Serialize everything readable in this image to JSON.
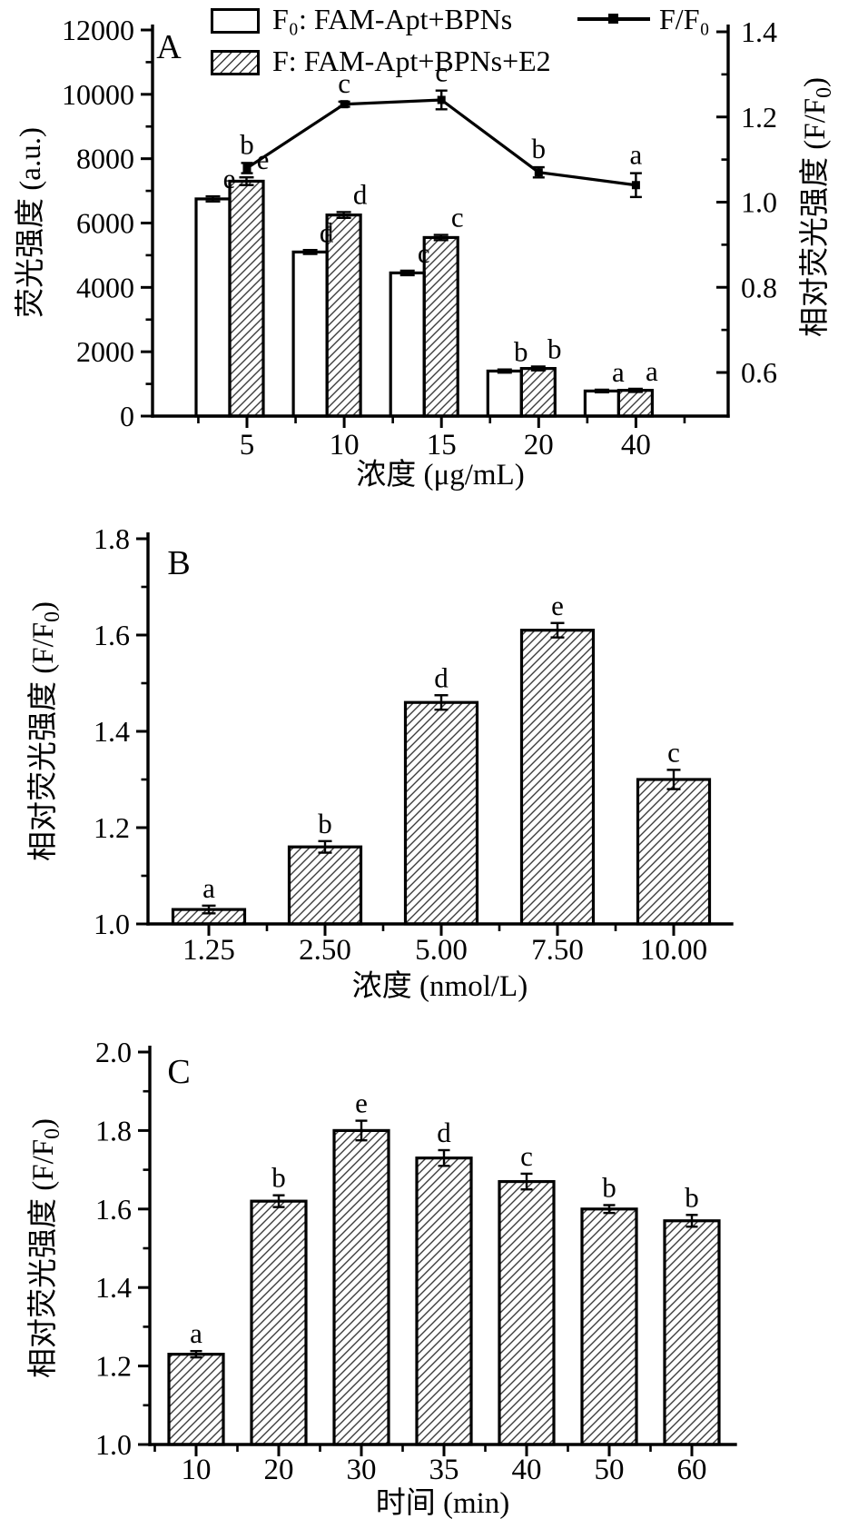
{
  "figure": {
    "background": "#ffffff",
    "ink_color": "#000000",
    "hatch_color": "#3d3d3d"
  },
  "legend": {
    "items": [
      {
        "swatch": "open",
        "label": "F₀: FAM-Apt+BPNs"
      },
      {
        "swatch": "hatch",
        "label": "F: FAM-Apt+BPNs+E2"
      },
      {
        "swatch": "line-marker",
        "label": "F/F₀"
      }
    ]
  },
  "chart_data": [
    {
      "type": "bar",
      "panel_label": "A",
      "categories": [
        "5",
        "10",
        "15",
        "20",
        "40"
      ],
      "xlabel": "浓度 (μg/mL)",
      "ylabel_left": "荧光强度 (a.u.)",
      "ylabel_right": "相对荧光强度 (F/F₀)",
      "ylim_left": [
        0,
        12000
      ],
      "yticks_left": [
        0,
        2000,
        4000,
        6000,
        8000,
        10000,
        12000
      ],
      "ytick_decimals_left": 0,
      "ylim_right": [
        0.6,
        1.4
      ],
      "yticks_right": [
        0.6,
        0.8,
        1.0,
        1.2,
        1.4
      ],
      "grid": false,
      "legend_position": "top",
      "series": [
        {
          "name": "F₀: FAM-Apt+BPNs",
          "fill": "open",
          "values": [
            6750,
            5100,
            4450,
            1400,
            780
          ],
          "errors": [
            80,
            60,
            70,
            50,
            40
          ],
          "letters": [
            "e",
            "d",
            "c",
            "b",
            "a"
          ]
        },
        {
          "name": "F: FAM-Apt+BPNs+E2",
          "fill": "hatch",
          "values": [
            7300,
            6250,
            5550,
            1480,
            800
          ],
          "errors": [
            120,
            90,
            80,
            60,
            50
          ],
          "letters": [
            "e",
            "d",
            "c",
            "b",
            "a"
          ]
        }
      ],
      "line_series": {
        "name": "F/F₀",
        "axis": "right",
        "marker": "filled-square",
        "values": [
          1.08,
          1.23,
          1.24,
          1.07,
          1.04
        ],
        "errors": [
          0.012,
          0.006,
          0.022,
          0.012,
          0.028
        ],
        "letters": [
          "b",
          "c",
          "c",
          "b",
          "a"
        ]
      }
    },
    {
      "type": "bar",
      "panel_label": "B",
      "categories": [
        "1.25",
        "2.50",
        "5.00",
        "7.50",
        "10.00"
      ],
      "xlabel": "浓度 (nmol/L)",
      "ylabel_left": "相对荧光强度 (F/F₀)",
      "ylim_left": [
        1.0,
        1.8
      ],
      "yticks_left": [
        1.0,
        1.2,
        1.4,
        1.6,
        1.8
      ],
      "ytick_decimals_left": 1,
      "grid": false,
      "series": [
        {
          "name": "F/F₀",
          "fill": "hatch",
          "values": [
            1.03,
            1.16,
            1.46,
            1.61,
            1.3
          ],
          "errors": [
            0.008,
            0.012,
            0.015,
            0.015,
            0.02
          ],
          "letters": [
            "a",
            "b",
            "d",
            "e",
            "c"
          ]
        }
      ]
    },
    {
      "type": "bar",
      "panel_label": "C",
      "categories": [
        "10",
        "20",
        "30",
        "35",
        "40",
        "50",
        "60"
      ],
      "xlabel": "时间 (min)",
      "ylabel_left": "相对荧光强度 (F/F₀)",
      "ylim_left": [
        1.0,
        2.0
      ],
      "yticks_left": [
        1.0,
        1.2,
        1.4,
        1.6,
        1.8,
        2.0
      ],
      "ytick_decimals_left": 1,
      "grid": false,
      "series": [
        {
          "name": "F/F₀",
          "fill": "hatch",
          "values": [
            1.23,
            1.62,
            1.8,
            1.73,
            1.67,
            1.6,
            1.57
          ],
          "errors": [
            0.008,
            0.015,
            0.025,
            0.02,
            0.02,
            0.01,
            0.015
          ],
          "letters": [
            "a",
            "b",
            "e",
            "d",
            "c",
            "b",
            "b"
          ]
        }
      ]
    }
  ]
}
